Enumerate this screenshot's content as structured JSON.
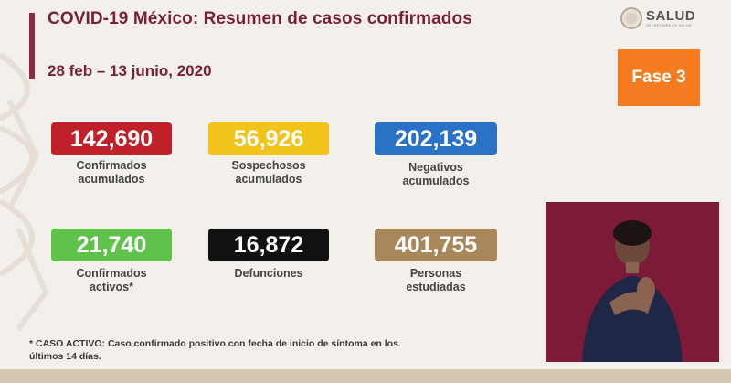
{
  "header": {
    "title": "COVID-19 México: Resumen de casos confirmados",
    "date_range": "28 feb – 13 junio, 2020"
  },
  "logo": {
    "text": "SALUD",
    "subtext": "SECRETARÍA DE SALUD"
  },
  "phase": {
    "label": "Fase 3"
  },
  "stats": [
    {
      "value": "142,690",
      "line1": "Confirmados",
      "line2": "acumulados",
      "color": "#c0202a"
    },
    {
      "value": "56,926",
      "line1": "Sospechosos",
      "line2": "acumulados",
      "color": "#f2c31b"
    },
    {
      "value": "202,139",
      "line1": "Negativos",
      "line2": "acumulados",
      "color": "#2a72c7"
    },
    {
      "value": "21,740",
      "line1": "Confirmados",
      "line2": "activos*",
      "color": "#5fc24a"
    },
    {
      "value": "16,872",
      "line1": "Defunciones",
      "line2": "",
      "color": "#111111"
    },
    {
      "value": "401,755",
      "line1": "Personas",
      "line2": "estudiadas",
      "color": "#a8875a"
    }
  ],
  "footnote": {
    "line1": "* CASO ACTIVO: Caso confirmado positivo con fecha de inicio de síntoma en los",
    "line2": "últimos 14 días."
  },
  "colors": {
    "title": "#7a1f3a",
    "phase_badge": "#f47b20",
    "interpreter_bg": "#7c1a37",
    "background": "#f3efea"
  }
}
